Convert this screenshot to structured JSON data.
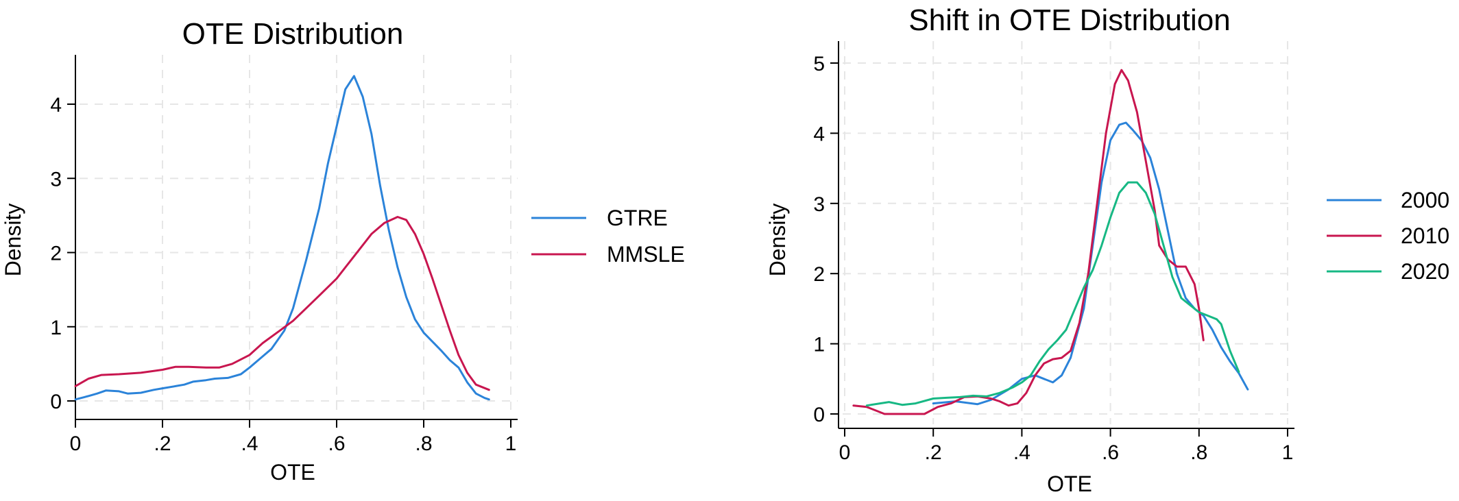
{
  "colors": {
    "blue": "#2b83d9",
    "red": "#c8164f",
    "green": "#17b884"
  },
  "chart_data": [
    {
      "type": "line",
      "title": "OTE Distribution",
      "xlabel": "OTE",
      "ylabel": "Density",
      "xlim": [
        0,
        1
      ],
      "ylim": [
        0,
        4.5
      ],
      "xticks": [
        0,
        0.2,
        0.4,
        0.6,
        0.8,
        1
      ],
      "xtick_labels": [
        "0",
        ".2",
        ".4",
        ".6",
        ".8",
        "1"
      ],
      "yticks": [
        0,
        1,
        2,
        3,
        4
      ],
      "ytick_labels": [
        "0",
        "1",
        "2",
        "3",
        "4"
      ],
      "grid": true,
      "legend_position": "right",
      "series": [
        {
          "name": "GTRE",
          "color": "#2b83d9",
          "points": [
            [
              0,
              0.02
            ],
            [
              0.02,
              0.05
            ],
            [
              0.05,
              0.1
            ],
            [
              0.07,
              0.14
            ],
            [
              0.1,
              0.13
            ],
            [
              0.12,
              0.1
            ],
            [
              0.15,
              0.11
            ],
            [
              0.18,
              0.15
            ],
            [
              0.2,
              0.17
            ],
            [
              0.23,
              0.2
            ],
            [
              0.25,
              0.22
            ],
            [
              0.27,
              0.26
            ],
            [
              0.3,
              0.28
            ],
            [
              0.32,
              0.3
            ],
            [
              0.35,
              0.31
            ],
            [
              0.38,
              0.36
            ],
            [
              0.4,
              0.45
            ],
            [
              0.43,
              0.6
            ],
            [
              0.45,
              0.7
            ],
            [
              0.48,
              0.95
            ],
            [
              0.5,
              1.25
            ],
            [
              0.53,
              1.9
            ],
            [
              0.56,
              2.6
            ],
            [
              0.58,
              3.2
            ],
            [
              0.6,
              3.7
            ],
            [
              0.62,
              4.2
            ],
            [
              0.64,
              4.38
            ],
            [
              0.66,
              4.1
            ],
            [
              0.68,
              3.6
            ],
            [
              0.7,
              2.9
            ],
            [
              0.72,
              2.3
            ],
            [
              0.74,
              1.8
            ],
            [
              0.76,
              1.4
            ],
            [
              0.78,
              1.1
            ],
            [
              0.8,
              0.92
            ],
            [
              0.82,
              0.8
            ],
            [
              0.84,
              0.68
            ],
            [
              0.86,
              0.55
            ],
            [
              0.88,
              0.45
            ],
            [
              0.9,
              0.25
            ],
            [
              0.92,
              0.1
            ],
            [
              0.94,
              0.04
            ],
            [
              0.95,
              0.02
            ]
          ]
        },
        {
          "name": "MMSLE",
          "color": "#c8164f",
          "points": [
            [
              0,
              0.2
            ],
            [
              0.03,
              0.3
            ],
            [
              0.06,
              0.35
            ],
            [
              0.1,
              0.36
            ],
            [
              0.15,
              0.38
            ],
            [
              0.2,
              0.42
            ],
            [
              0.23,
              0.46
            ],
            [
              0.26,
              0.46
            ],
            [
              0.3,
              0.45
            ],
            [
              0.33,
              0.45
            ],
            [
              0.36,
              0.5
            ],
            [
              0.4,
              0.62
            ],
            [
              0.43,
              0.78
            ],
            [
              0.47,
              0.95
            ],
            [
              0.5,
              1.08
            ],
            [
              0.53,
              1.25
            ],
            [
              0.56,
              1.42
            ],
            [
              0.6,
              1.65
            ],
            [
              0.64,
              1.95
            ],
            [
              0.68,
              2.25
            ],
            [
              0.71,
              2.4
            ],
            [
              0.74,
              2.48
            ],
            [
              0.76,
              2.44
            ],
            [
              0.78,
              2.25
            ],
            [
              0.8,
              1.98
            ],
            [
              0.82,
              1.65
            ],
            [
              0.84,
              1.3
            ],
            [
              0.86,
              0.95
            ],
            [
              0.88,
              0.62
            ],
            [
              0.9,
              0.38
            ],
            [
              0.92,
              0.22
            ],
            [
              0.95,
              0.15
            ]
          ]
        }
      ]
    },
    {
      "type": "line",
      "title": "Shift in OTE Distribution",
      "xlabel": "OTE",
      "ylabel": "Density",
      "xlim": [
        0,
        1
      ],
      "ylim": [
        0,
        5
      ],
      "xticks": [
        0,
        0.2,
        0.4,
        0.6,
        0.8,
        1
      ],
      "xtick_labels": [
        "0",
        ".2",
        ".4",
        ".6",
        ".8",
        "1"
      ],
      "yticks": [
        0,
        1,
        2,
        3,
        4,
        5
      ],
      "ytick_labels": [
        "0",
        "1",
        "2",
        "3",
        "4",
        "5"
      ],
      "grid": true,
      "legend_position": "right",
      "series": [
        {
          "name": "2000",
          "color": "#2b83d9",
          "points": [
            [
              0.2,
              0.15
            ],
            [
              0.25,
              0.18
            ],
            [
              0.3,
              0.14
            ],
            [
              0.33,
              0.2
            ],
            [
              0.37,
              0.35
            ],
            [
              0.4,
              0.5
            ],
            [
              0.43,
              0.55
            ],
            [
              0.45,
              0.5
            ],
            [
              0.47,
              0.45
            ],
            [
              0.49,
              0.55
            ],
            [
              0.51,
              0.8
            ],
            [
              0.54,
              1.5
            ],
            [
              0.56,
              2.4
            ],
            [
              0.58,
              3.3
            ],
            [
              0.6,
              3.9
            ],
            [
              0.62,
              4.12
            ],
            [
              0.635,
              4.15
            ],
            [
              0.65,
              4.05
            ],
            [
              0.67,
              3.9
            ],
            [
              0.69,
              3.65
            ],
            [
              0.71,
              3.2
            ],
            [
              0.73,
              2.6
            ],
            [
              0.75,
              2.0
            ],
            [
              0.77,
              1.65
            ],
            [
              0.79,
              1.5
            ],
            [
              0.81,
              1.4
            ],
            [
              0.83,
              1.2
            ],
            [
              0.85,
              0.95
            ],
            [
              0.87,
              0.75
            ],
            [
              0.89,
              0.58
            ],
            [
              0.91,
              0.35
            ]
          ]
        },
        {
          "name": "2010",
          "color": "#c8164f",
          "points": [
            [
              0.02,
              0.12
            ],
            [
              0.05,
              0.1
            ],
            [
              0.07,
              0.05
            ],
            [
              0.09,
              0.0
            ],
            [
              0.12,
              0.0
            ],
            [
              0.15,
              0.0
            ],
            [
              0.18,
              0.0
            ],
            [
              0.21,
              0.1
            ],
            [
              0.24,
              0.15
            ],
            [
              0.27,
              0.24
            ],
            [
              0.3,
              0.25
            ],
            [
              0.33,
              0.22
            ],
            [
              0.35,
              0.18
            ],
            [
              0.37,
              0.12
            ],
            [
              0.39,
              0.15
            ],
            [
              0.41,
              0.3
            ],
            [
              0.43,
              0.55
            ],
            [
              0.45,
              0.72
            ],
            [
              0.47,
              0.78
            ],
            [
              0.49,
              0.8
            ],
            [
              0.51,
              0.9
            ],
            [
              0.53,
              1.3
            ],
            [
              0.55,
              2.0
            ],
            [
              0.57,
              3.0
            ],
            [
              0.59,
              4.0
            ],
            [
              0.61,
              4.7
            ],
            [
              0.625,
              4.9
            ],
            [
              0.64,
              4.75
            ],
            [
              0.66,
              4.3
            ],
            [
              0.68,
              3.6
            ],
            [
              0.7,
              2.9
            ],
            [
              0.71,
              2.4
            ],
            [
              0.73,
              2.2
            ],
            [
              0.75,
              2.1
            ],
            [
              0.77,
              2.1
            ],
            [
              0.79,
              1.85
            ],
            [
              0.8,
              1.5
            ],
            [
              0.81,
              1.05
            ]
          ]
        },
        {
          "name": "2020",
          "color": "#17b884",
          "points": [
            [
              0.05,
              0.12
            ],
            [
              0.08,
              0.15
            ],
            [
              0.1,
              0.17
            ],
            [
              0.13,
              0.13
            ],
            [
              0.16,
              0.15
            ],
            [
              0.2,
              0.22
            ],
            [
              0.23,
              0.23
            ],
            [
              0.26,
              0.24
            ],
            [
              0.29,
              0.26
            ],
            [
              0.32,
              0.25
            ],
            [
              0.35,
              0.3
            ],
            [
              0.38,
              0.38
            ],
            [
              0.4,
              0.45
            ],
            [
              0.42,
              0.55
            ],
            [
              0.44,
              0.75
            ],
            [
              0.46,
              0.92
            ],
            [
              0.48,
              1.05
            ],
            [
              0.5,
              1.2
            ],
            [
              0.52,
              1.5
            ],
            [
              0.54,
              1.8
            ],
            [
              0.56,
              2.05
            ],
            [
              0.58,
              2.4
            ],
            [
              0.6,
              2.8
            ],
            [
              0.62,
              3.15
            ],
            [
              0.64,
              3.3
            ],
            [
              0.66,
              3.3
            ],
            [
              0.68,
              3.15
            ],
            [
              0.7,
              2.85
            ],
            [
              0.72,
              2.4
            ],
            [
              0.74,
              1.95
            ],
            [
              0.76,
              1.65
            ],
            [
              0.78,
              1.55
            ],
            [
              0.8,
              1.45
            ],
            [
              0.82,
              1.4
            ],
            [
              0.84,
              1.35
            ],
            [
              0.85,
              1.28
            ],
            [
              0.87,
              0.9
            ],
            [
              0.89,
              0.6
            ]
          ]
        }
      ]
    }
  ]
}
